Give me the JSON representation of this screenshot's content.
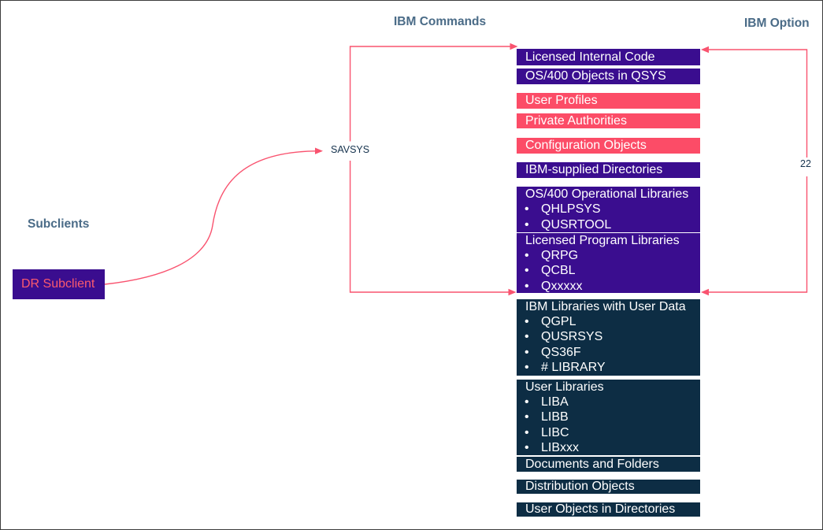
{
  "titles": {
    "commands": "IBM Commands",
    "option": "IBM Option",
    "subclients": "Subclients"
  },
  "labels": {
    "savsys": "SAVSYS",
    "option_count": "22",
    "dr_subclient": "DR Subclient"
  },
  "column": {
    "boxes": [
      {
        "title": "Licensed Internal Code",
        "color": "purple",
        "items": []
      },
      {
        "title": "OS/400 Objects in QSYS",
        "color": "purple",
        "items": []
      },
      {
        "title": "User Profiles",
        "color": "pink",
        "items": []
      },
      {
        "title": "Private Authorities",
        "color": "pink",
        "items": []
      },
      {
        "title": "Configuration Objects",
        "color": "pink",
        "items": []
      },
      {
        "title": "IBM-supplied Directories",
        "color": "purple",
        "items": []
      },
      {
        "title": "OS/400 Operational Libraries",
        "color": "purple",
        "items": [
          "QHLPSYS",
          "QUSRTOOL"
        ]
      },
      {
        "title": "Licensed Program Libraries",
        "color": "purple",
        "items": [
          "QRPG",
          "QCBL",
          "Qxxxxx"
        ]
      },
      {
        "title": "IBM Libraries with User Data",
        "color": "slate",
        "items": [
          "QGPL",
          "QUSRSYS",
          "QS36F",
          "# LIBRARY"
        ]
      },
      {
        "title": "User Libraries",
        "color": "slate",
        "items": [
          "LIBA",
          "LIBB",
          "LIBC",
          "LIBxxx"
        ]
      },
      {
        "title": "Documents and Folders",
        "color": "slate",
        "items": []
      },
      {
        "title": "Distribution Objects",
        "color": "slate",
        "items": []
      },
      {
        "title": "User Objects in Directories",
        "color": "slate",
        "items": []
      }
    ],
    "bullet_char": "•"
  },
  "colors": {
    "purple_box": "#3a0d8f",
    "pink_box": "#fc4c67",
    "slate_box": "#0d2d44",
    "connector_pink": "#f9536f",
    "heading_text": "#4a6b87",
    "label_text": "#15324d",
    "dr_text": "#fb5a6e",
    "box_text": "#ffffff",
    "frame_border": "#3c3c3c"
  }
}
